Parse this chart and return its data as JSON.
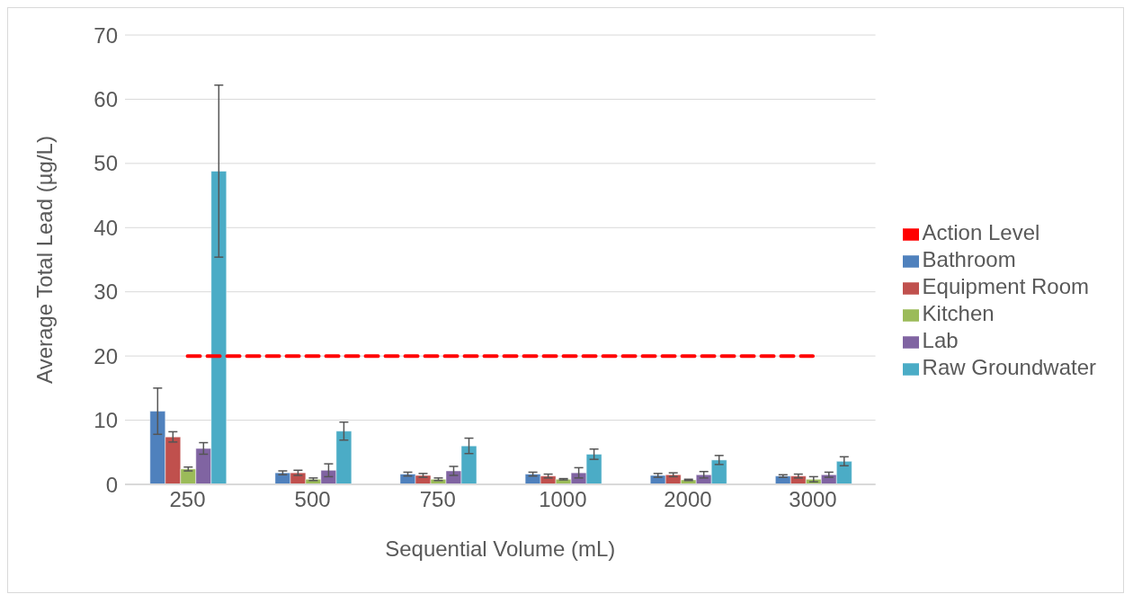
{
  "chart_data": {
    "type": "bar",
    "xlabel": "Sequential Volume (mL)",
    "ylabel": "Average Total Lead (µg/L)",
    "categories": [
      "250",
      "500",
      "750",
      "1000",
      "2000",
      "3000"
    ],
    "series": [
      {
        "name": "Bathroom",
        "color": "#4f81bd",
        "values": [
          11.4,
          1.8,
          1.6,
          1.6,
          1.4,
          1.3
        ],
        "errors": [
          3.6,
          0.3,
          0.3,
          0.3,
          0.3,
          0.2
        ]
      },
      {
        "name": "Equipment Room",
        "color": "#c0504d",
        "values": [
          7.4,
          1.8,
          1.4,
          1.3,
          1.5,
          1.3
        ],
        "errors": [
          0.8,
          0.4,
          0.3,
          0.3,
          0.3,
          0.3
        ]
      },
      {
        "name": "Kitchen",
        "color": "#9bbb59",
        "values": [
          2.4,
          0.8,
          0.8,
          0.8,
          0.7,
          0.8
        ],
        "errors": [
          0.3,
          0.2,
          0.2,
          0.1,
          0.1,
          0.4
        ]
      },
      {
        "name": "Lab",
        "color": "#8064a2",
        "values": [
          5.6,
          2.2,
          2.1,
          1.8,
          1.5,
          1.5
        ],
        "errors": [
          0.9,
          1.0,
          0.7,
          0.8,
          0.5,
          0.4
        ]
      },
      {
        "name": "Raw Groundwater",
        "color": "#4bacc6",
        "values": [
          48.8,
          8.3,
          6.0,
          4.7,
          3.8,
          3.6
        ],
        "errors": [
          13.4,
          1.4,
          1.2,
          0.8,
          0.7,
          0.7
        ]
      },
      {
        "name": "Action Level",
        "type": "line",
        "color": "#ff0000",
        "line_style": "dashed",
        "marker": "none",
        "values": [
          20,
          20,
          20,
          20,
          20,
          20
        ]
      }
    ],
    "ylim": [
      0,
      70
    ],
    "yticks": [
      0,
      10,
      20,
      30,
      40,
      50,
      60,
      70
    ],
    "grid": "y",
    "legend": "right"
  }
}
